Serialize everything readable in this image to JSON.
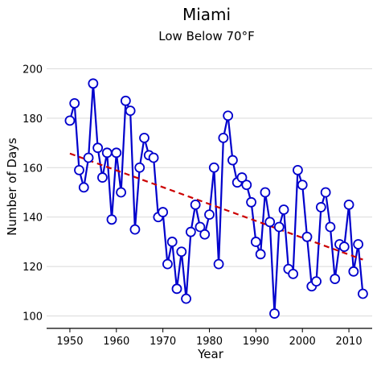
{
  "chart_data": {
    "type": "line",
    "title": "Miami",
    "subtitle": "Low Below 70°F",
    "xlabel": "Year",
    "ylabel": "Number of Days",
    "xlim": [
      1945,
      2015
    ],
    "ylim": [
      95,
      205
    ],
    "x_ticks": [
      1950,
      1960,
      1970,
      1980,
      1990,
      2000,
      2010
    ],
    "y_ticks": [
      100,
      120,
      140,
      160,
      180,
      200
    ],
    "grid": "horizontal",
    "series": [
      {
        "kind": "observed",
        "color": "#0000cc",
        "marker": "open-circle",
        "x": [
          1950,
          1951,
          1952,
          1953,
          1954,
          1955,
          1956,
          1957,
          1958,
          1959,
          1960,
          1961,
          1962,
          1963,
          1964,
          1965,
          1966,
          1967,
          1968,
          1969,
          1970,
          1971,
          1972,
          1973,
          1974,
          1975,
          1976,
          1977,
          1978,
          1979,
          1980,
          1981,
          1982,
          1983,
          1984,
          1985,
          1986,
          1987,
          1988,
          1989,
          1990,
          1991,
          1992,
          1993,
          1994,
          1995,
          1996,
          1997,
          1998,
          1999,
          2000,
          2001,
          2002,
          2003,
          2004,
          2005,
          2006,
          2007,
          2008,
          2009,
          2010,
          2011,
          2012,
          2013
        ],
        "y": [
          179,
          186,
          159,
          152,
          164,
          194,
          168,
          156,
          166,
          139,
          166,
          150,
          187,
          183,
          135,
          160,
          172,
          165,
          164,
          140,
          142,
          121,
          130,
          111,
          126,
          107,
          134,
          145,
          136,
          133,
          141,
          160,
          121,
          172,
          181,
          163,
          154,
          156,
          153,
          146,
          130,
          125,
          150,
          138,
          101,
          136,
          143,
          119,
          117,
          159,
          153,
          132,
          112,
          114,
          144,
          150,
          136,
          115,
          129,
          128,
          145,
          118,
          129,
          109
        ]
      },
      {
        "kind": "trend",
        "color": "#cc0000",
        "style": "dashed",
        "x": [
          1950,
          2013
        ],
        "y": [
          165.7,
          122.8
        ]
      }
    ]
  }
}
